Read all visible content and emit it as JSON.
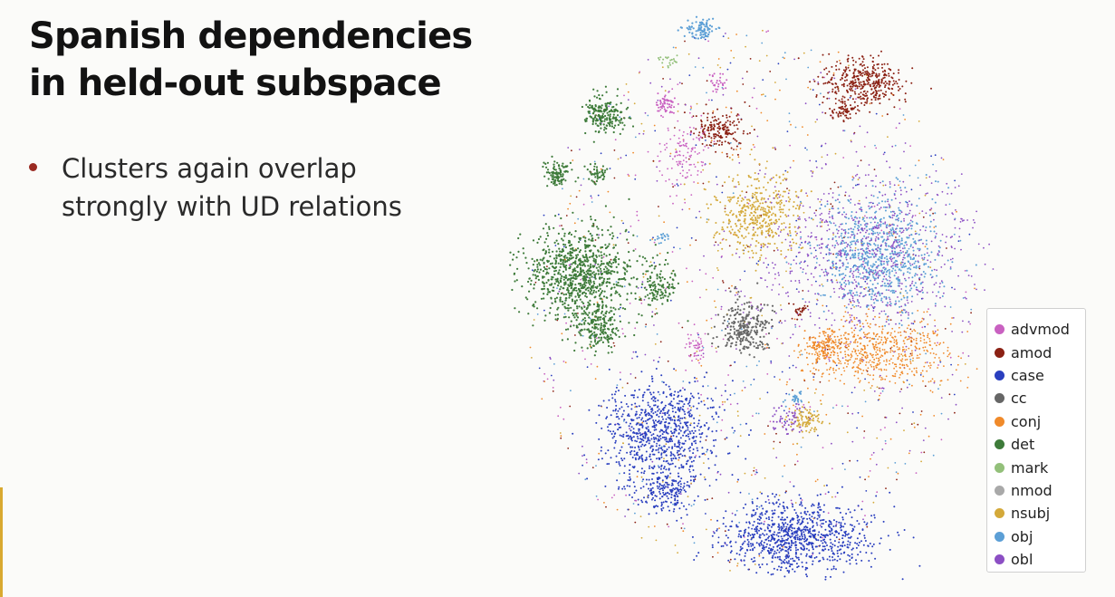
{
  "slide": {
    "title_line1": "Spanish dependencies",
    "title_line2": "in held-out subspace",
    "bullets": [
      {
        "line1": "Clusters again overlap",
        "line2": "strongly with UD relations"
      }
    ],
    "bullet_color": "#9a2a22",
    "accent_bar_color": "#d9a930"
  },
  "chart_data": {
    "type": "scatter",
    "title": "",
    "xlabel": "",
    "ylabel": "",
    "grid": false,
    "legend_position": "bottom-right",
    "legend": [
      {
        "label": "advmod",
        "color": "#c961c1"
      },
      {
        "label": "amod",
        "color": "#8b2114"
      },
      {
        "label": "case",
        "color": "#2a3fbf"
      },
      {
        "label": "cc",
        "color": "#666666"
      },
      {
        "label": "conj",
        "color": "#f08a2a"
      },
      {
        "label": "det",
        "color": "#3e7b3a"
      },
      {
        "label": "mark",
        "color": "#93c07a"
      },
      {
        "label": "nmod",
        "color": "#a9a9a9"
      },
      {
        "label": "nsubj",
        "color": "#d4a93a"
      },
      {
        "label": "obj",
        "color": "#5c9fd6"
      },
      {
        "label": "obl",
        "color": "#8c4fc4"
      }
    ]
  }
}
